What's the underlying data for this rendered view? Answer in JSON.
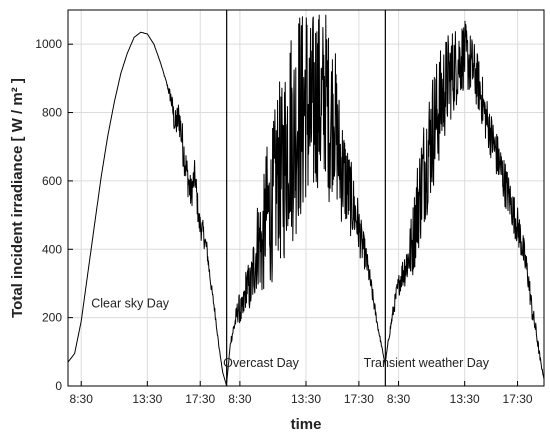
{
  "chart_data": {
    "type": "line",
    "title": "",
    "xlabel": "time",
    "ylabel": "Total incident irradiance [ W / m² ]",
    "ylim": [
      0,
      1100
    ],
    "yticks": [
      0,
      200,
      400,
      600,
      800,
      1000
    ],
    "xlim_hours": [
      7.5,
      19.5
    ],
    "xtick_hours": [
      8.5,
      13.5,
      17.5
    ],
    "xtick_labels": [
      "8:30",
      "13:30",
      "17:30"
    ],
    "grid": true,
    "legend": "none",
    "line_color": "#000000",
    "grid_color": "#dcdcdc",
    "annotations": [
      {
        "text": "Clear sky Day",
        "x": 12.2,
        "y": 230
      },
      {
        "text": "Overcast Day",
        "x": 10.1,
        "y": 55
      },
      {
        "text": "Transient weather Day",
        "x": 10.6,
        "y": 55
      }
    ],
    "series": [
      {
        "name": "",
        "x": [
          7.5,
          8.0,
          8.5,
          9.0,
          9.5,
          10.0,
          10.5,
          11.0,
          11.5,
          12.0,
          12.5,
          13.0,
          13.5,
          14.0,
          14.5,
          15.0,
          15.3,
          15.6,
          15.9,
          16.2,
          16.5,
          16.8,
          17.1,
          17.4,
          17.7,
          18.0,
          18.3,
          18.6,
          18.9,
          19.2,
          19.5
        ],
        "y": [
          70,
          95,
          190,
          330,
          470,
          610,
          730,
          830,
          915,
          975,
          1020,
          1035,
          1030,
          1000,
          945,
          880,
          840,
          760,
          790,
          700,
          620,
          560,
          620,
          480,
          450,
          400,
          300,
          220,
          120,
          40,
          0
        ],
        "noise": [
          0,
          0,
          0,
          0,
          0,
          0,
          0,
          0,
          0,
          0,
          0,
          0,
          0,
          0,
          0,
          5,
          25,
          45,
          55,
          60,
          55,
          50,
          45,
          40,
          35,
          25,
          15,
          10,
          5,
          0,
          0
        ]
      },
      {
        "name": "",
        "x": [
          7.5,
          7.8,
          8.1,
          8.4,
          8.7,
          9.0,
          9.3,
          9.6,
          9.9,
          10.2,
          10.5,
          10.8,
          11.1,
          11.4,
          11.7,
          12.0,
          12.3,
          12.6,
          12.9,
          13.2,
          13.5,
          13.8,
          14.1,
          14.4,
          14.7,
          15.0,
          15.3,
          15.6,
          15.9,
          16.2,
          16.5,
          16.8,
          17.1,
          17.4,
          17.7,
          18.0,
          18.3,
          18.6,
          18.9,
          19.2,
          19.5
        ],
        "y": [
          10,
          130,
          180,
          230,
          210,
          300,
          280,
          360,
          430,
          400,
          520,
          500,
          560,
          640,
          600,
          700,
          760,
          720,
          800,
          780,
          850,
          760,
          820,
          860,
          800,
          880,
          760,
          820,
          700,
          640,
          600,
          560,
          520,
          480,
          420,
          380,
          320,
          250,
          180,
          120,
          60
        ],
        "noise": [
          0,
          10,
          25,
          40,
          50,
          60,
          80,
          110,
          140,
          160,
          190,
          210,
          240,
          260,
          280,
          300,
          310,
          320,
          330,
          320,
          310,
          300,
          290,
          280,
          270,
          260,
          240,
          220,
          200,
          170,
          140,
          120,
          100,
          80,
          60,
          45,
          30,
          20,
          10,
          5,
          0
        ]
      },
      {
        "name": "",
        "x": [
          7.5,
          7.8,
          8.1,
          8.4,
          8.7,
          9.0,
          9.3,
          9.6,
          9.9,
          10.2,
          10.5,
          10.8,
          11.1,
          11.4,
          11.7,
          12.0,
          12.3,
          12.6,
          12.9,
          13.2,
          13.5,
          13.8,
          14.1,
          14.4,
          14.7,
          15.0,
          15.3,
          15.6,
          15.9,
          16.2,
          16.5,
          16.8,
          17.1,
          17.4,
          17.7,
          18.0,
          18.3,
          18.6,
          18.9,
          19.2,
          19.5
        ],
        "y": [
          70,
          150,
          220,
          280,
          320,
          350,
          380,
          430,
          520,
          580,
          650,
          700,
          750,
          790,
          830,
          870,
          900,
          920,
          940,
          960,
          970,
          950,
          930,
          900,
          860,
          800,
          760,
          720,
          680,
          640,
          600,
          560,
          520,
          480,
          440,
          380,
          320,
          220,
          160,
          80,
          20
        ],
        "noise": [
          0,
          10,
          20,
          30,
          40,
          60,
          80,
          110,
          140,
          160,
          170,
          180,
          180,
          170,
          160,
          150,
          140,
          130,
          120,
          110,
          100,
          95,
          90,
          85,
          80,
          75,
          70,
          70,
          70,
          70,
          70,
          65,
          60,
          60,
          55,
          50,
          40,
          30,
          20,
          10,
          0
        ]
      }
    ]
  }
}
